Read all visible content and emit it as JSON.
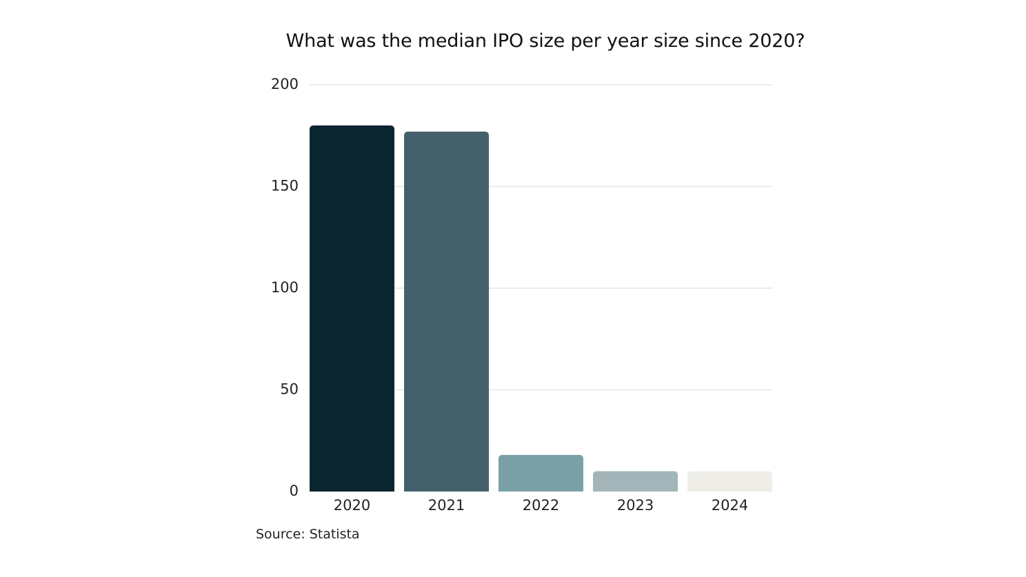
{
  "chart_data": {
    "type": "bar",
    "title": "What was the median IPO size per year size since 2020?",
    "categories": [
      "2020",
      "2021",
      "2022",
      "2023",
      "2024"
    ],
    "values": [
      180,
      177,
      18,
      10,
      10
    ],
    "bar_colors": [
      "#0b2530",
      "#43616a",
      "#7aa0a7",
      "#a3b5b9",
      "#eeede8"
    ],
    "gridline_color": "#e3e5e6",
    "ylim": [
      0,
      200
    ],
    "yticks": [
      0,
      50,
      100,
      150,
      200
    ],
    "xlabel": "",
    "ylabel": "",
    "grid": true,
    "legend": "none"
  },
  "source": "Source: Statista"
}
